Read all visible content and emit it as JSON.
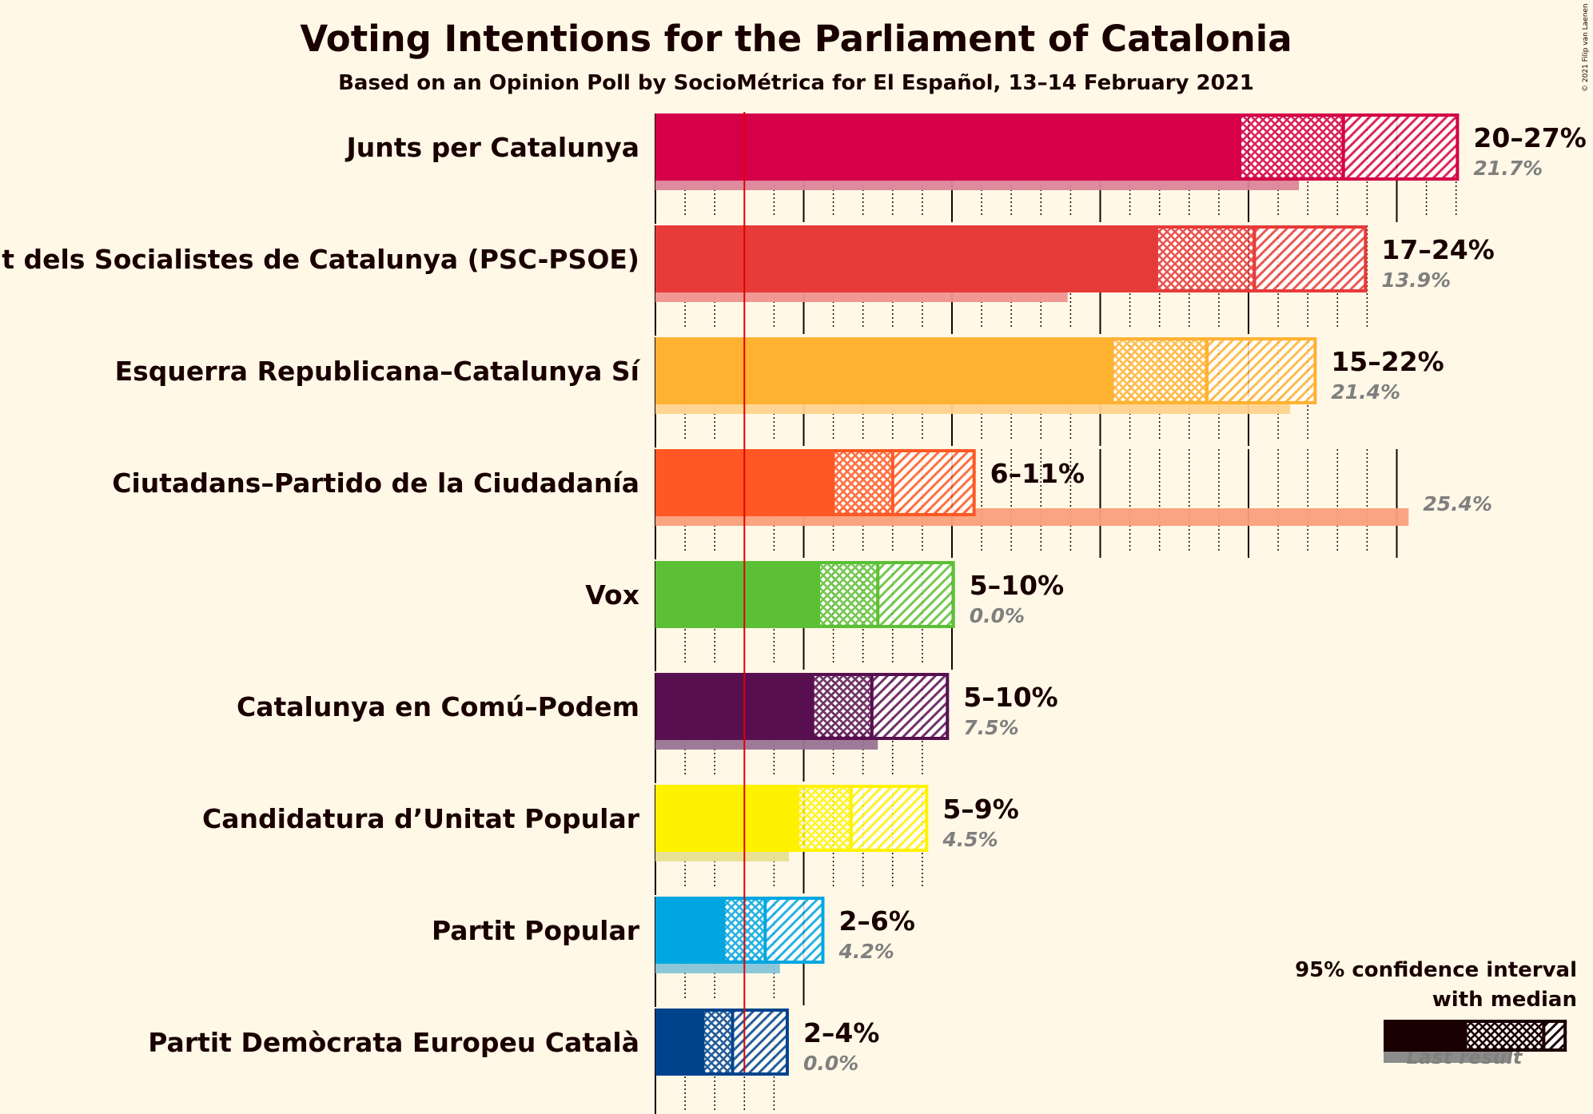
{
  "chart_data": {
    "type": "bar",
    "title": "Voting Intentions for the Parliament of Catalonia",
    "subtitle": "Based on an Opinion Poll by SocioMétrica for El Español, 13–14 February 2021",
    "copyright": "© 2021 Filip van Laenen",
    "xlim": [
      0,
      27.5
    ],
    "threshold": 3,
    "legend": {
      "line1": "95% confidence interval",
      "line2": "with median",
      "last_result": "Last result",
      "color": "#1a0000",
      "range": [
        0,
        6.5
      ],
      "median": 3.3,
      "inner": 5.4,
      "last": 4.3
    },
    "series": [
      {
        "name": "Junts per Catalunya",
        "color": "#d50048",
        "light": "#dc8599",
        "low": 19.7,
        "high": 27.1,
        "median": 23.2,
        "range_label": "20–27%",
        "last": 21.7,
        "last_label": "21.7%"
      },
      {
        "name": "Partit dels Socialistes de Catalunya (PSC-PSOE)",
        "color": "#e73b39",
        "light": "#ef928f",
        "low": 16.9,
        "high": 24.0,
        "median": 20.2,
        "range_label": "17–24%",
        "last": 13.9,
        "last_label": "13.9%"
      },
      {
        "name": "Esquerra Republicana–Catalunya Sí",
        "color": "#ffb232",
        "light": "#ffd38e",
        "low": 15.4,
        "high": 22.3,
        "median": 18.6,
        "range_label": "15–22%",
        "last": 21.4,
        "last_label": "21.4%"
      },
      {
        "name": "Ciutadans–Partido de la Ciudadanía",
        "color": "#ff5824",
        "light": "#fa9f7b",
        "low": 6.0,
        "high": 10.8,
        "median": 8.0,
        "range_label": "6–11%",
        "last": 25.4,
        "last_label": "25.4%"
      },
      {
        "name": "Vox",
        "color": "#5bc035",
        "light": "#a6d98f",
        "low": 5.5,
        "high": 10.1,
        "median": 7.5,
        "range_label": "5–10%",
        "last": 0.0,
        "last_label": "0.0%"
      },
      {
        "name": "Catalunya en Comú–Podem",
        "color": "#570f50",
        "light": "#9a7394",
        "low": 5.3,
        "high": 9.9,
        "median": 7.3,
        "range_label": "5–10%",
        "last": 7.5,
        "last_label": "7.5%"
      },
      {
        "name": "Candidatura d’Unitat Popular",
        "color": "#fff200",
        "light": "#e8e090",
        "low": 4.8,
        "high": 9.2,
        "median": 6.6,
        "range_label": "5–9%",
        "last": 4.5,
        "last_label": "4.5%"
      },
      {
        "name": "Partit Popular",
        "color": "#00a6e1",
        "light": "#86c4d8",
        "low": 2.3,
        "high": 5.7,
        "median": 3.7,
        "range_label": "2–6%",
        "last": 4.2,
        "last_label": "4.2%"
      },
      {
        "name": "Partit Demòcrata Europeu Català",
        "color": "#00438d",
        "light": "#7d93b3",
        "low": 1.6,
        "high": 4.5,
        "median": 2.6,
        "range_label": "2–4%",
        "last": 0.0,
        "last_label": "0.0%"
      }
    ]
  }
}
